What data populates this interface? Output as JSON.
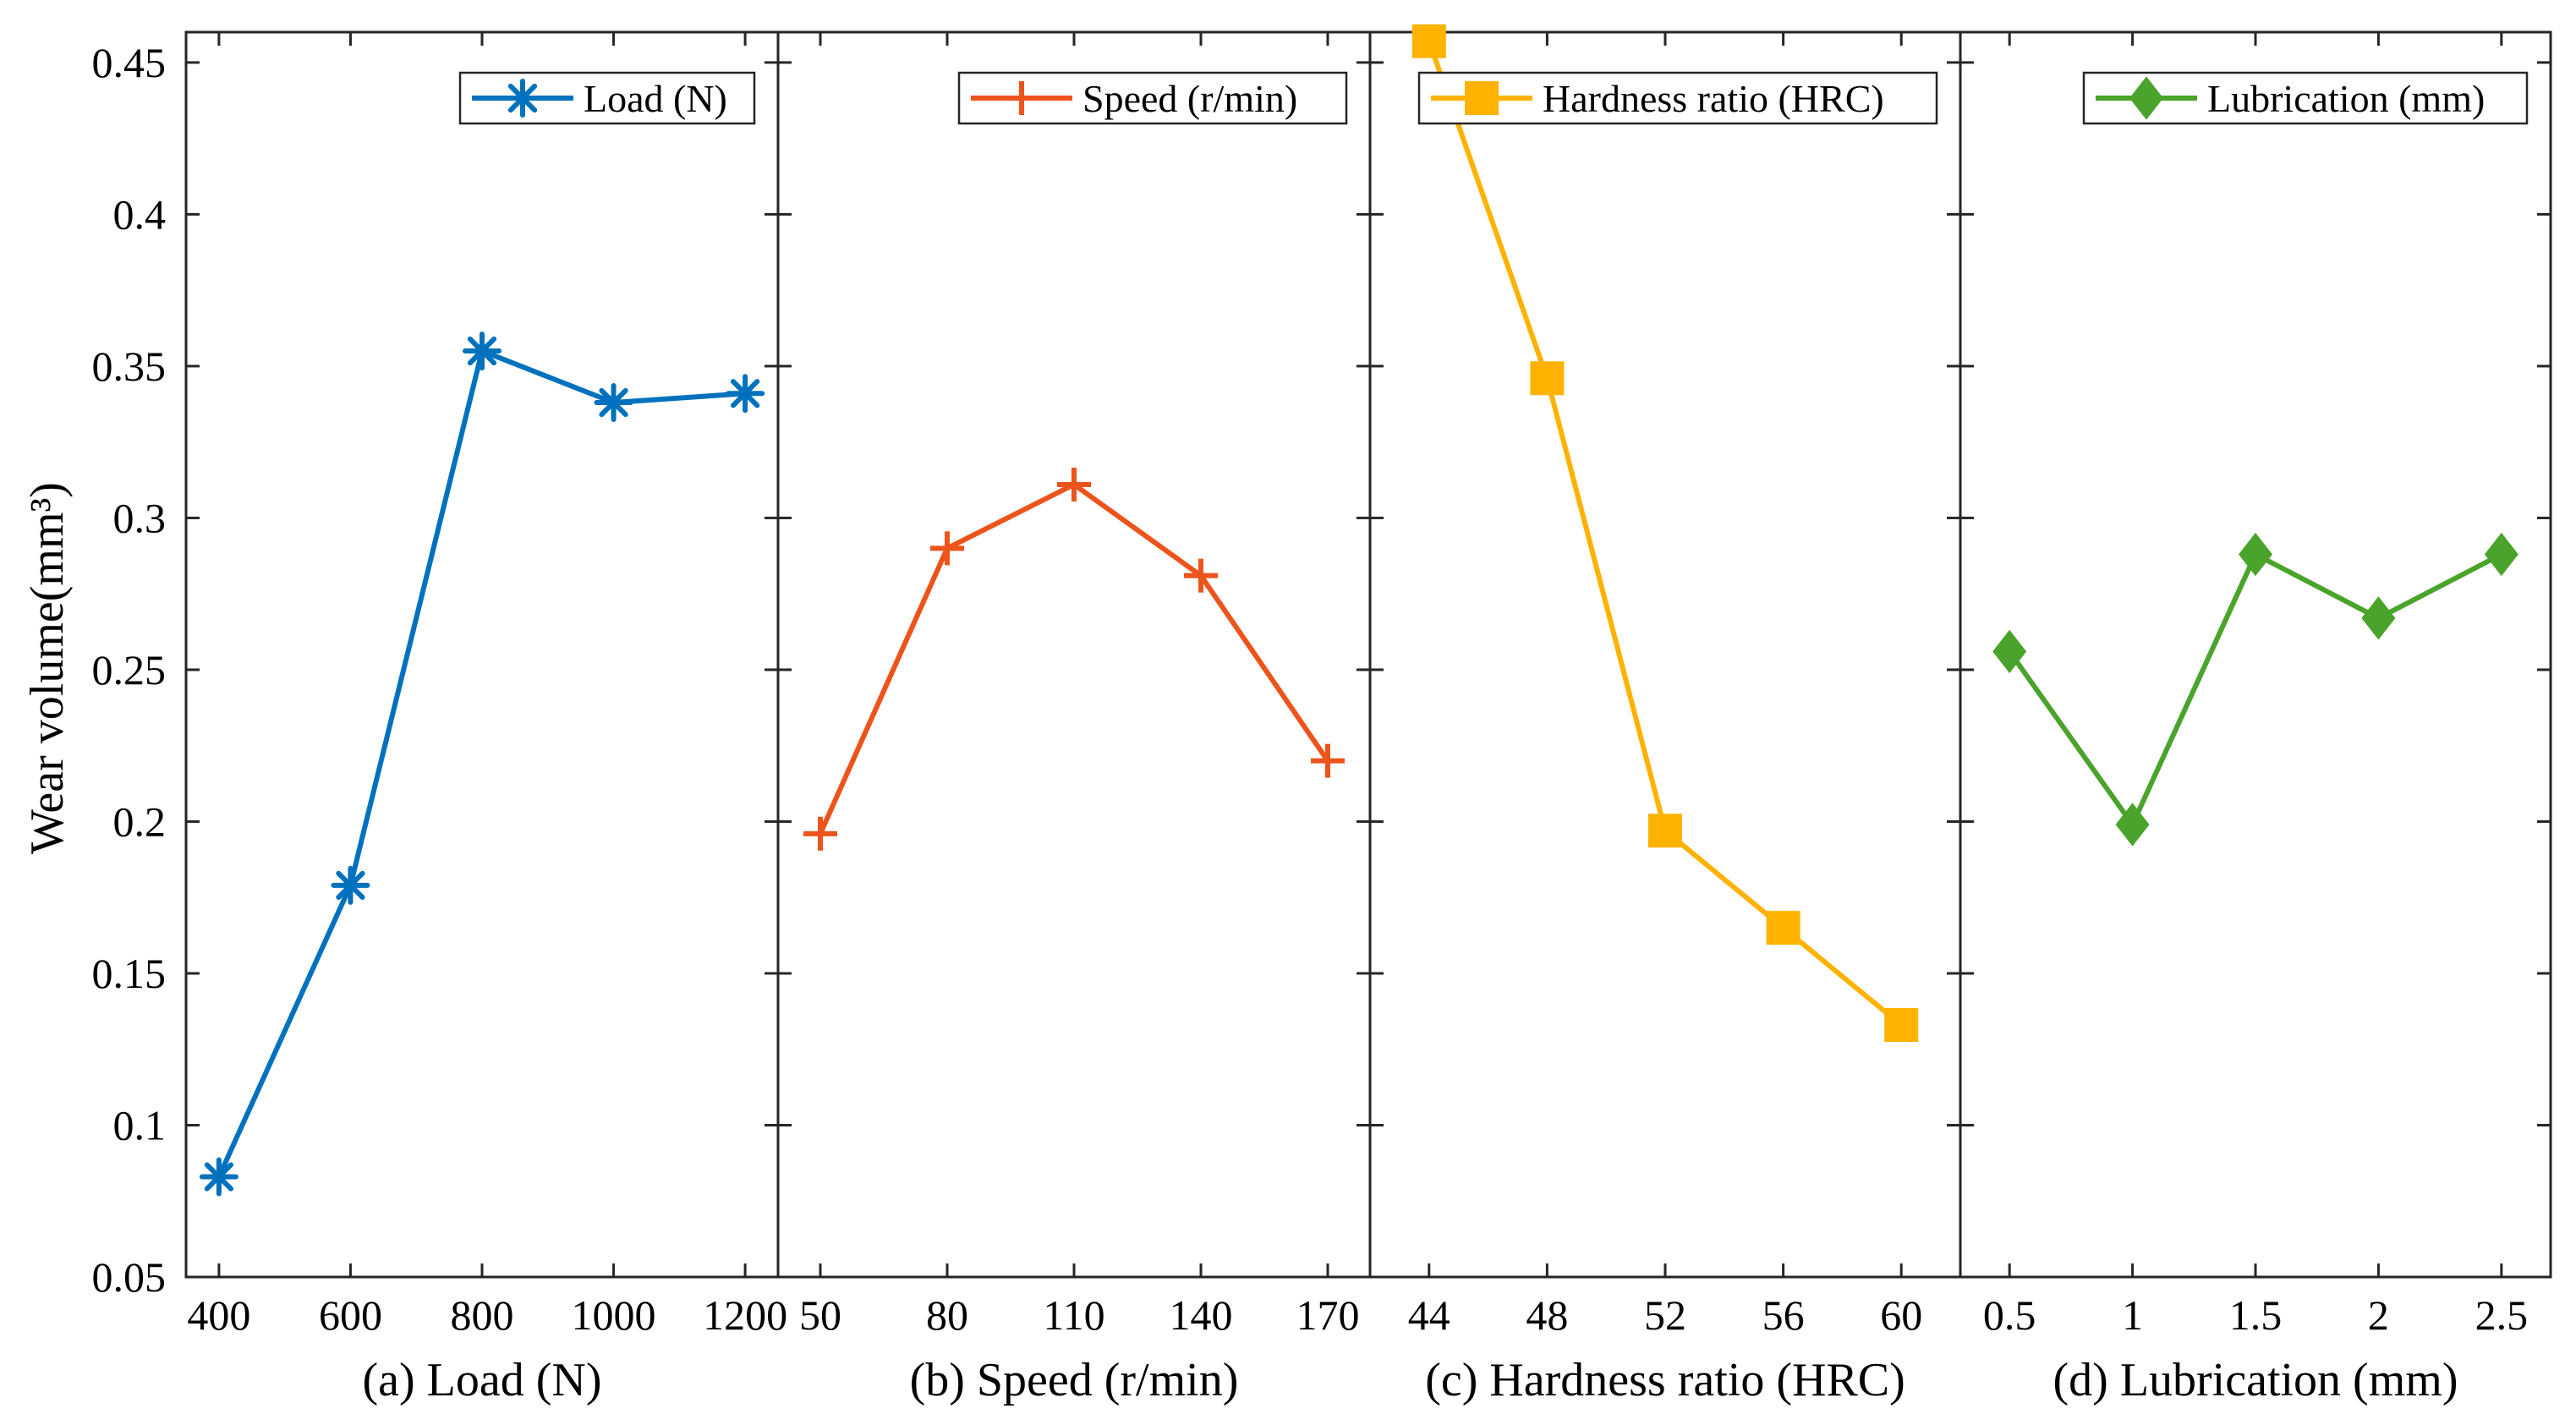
{
  "chart_data": [
    {
      "type": "line",
      "xlabel": "(a) Load (N)",
      "ylabel": "Wear volume(mm³)",
      "categories": [
        "400",
        "600",
        "800",
        "1000",
        "1200"
      ],
      "x": [
        400,
        600,
        800,
        1000,
        1200
      ],
      "xlim": [
        350,
        1250
      ],
      "ylim": [
        0.05,
        0.46
      ],
      "yticks": [
        "0.05",
        "0.1",
        "0.15",
        "0.2",
        "0.25",
        "0.3",
        "0.35",
        "0.4",
        "0.45"
      ],
      "legend_position": "top-right",
      "series": [
        {
          "name": "Load (N)",
          "values": [
            0.083,
            0.179,
            0.355,
            0.338,
            0.341
          ],
          "color": "#0072BD",
          "marker": "asterisk"
        }
      ]
    },
    {
      "type": "line",
      "xlabel": "(b) Speed (r/min)",
      "categories": [
        "50",
        "80",
        "110",
        "140",
        "170"
      ],
      "x": [
        50,
        80,
        110,
        140,
        170
      ],
      "xlim": [
        40,
        180
      ],
      "ylim": [
        0.05,
        0.46
      ],
      "legend_position": "top-right",
      "series": [
        {
          "name": "Speed (r/min)",
          "values": [
            0.196,
            0.29,
            0.311,
            0.281,
            0.22
          ],
          "color": "#ED541B",
          "marker": "plus"
        }
      ]
    },
    {
      "type": "line",
      "xlabel": "(c) Hardness ratio (HRC)",
      "categories": [
        "44",
        "48",
        "52",
        "56",
        "60"
      ],
      "x": [
        44,
        48,
        52,
        56,
        60
      ],
      "xlim": [
        42,
        62
      ],
      "ylim": [
        0.05,
        0.46
      ],
      "legend_position": "top-right",
      "series": [
        {
          "name": "Hardness ratio (HRC)",
          "values": [
            0.457,
            0.346,
            0.197,
            0.165,
            0.133
          ],
          "color": "#FFB300",
          "marker": "square"
        }
      ]
    },
    {
      "type": "line",
      "xlabel": "(d) Lubrication (mm)",
      "categories": [
        "0.5",
        "1",
        "1.5",
        "2",
        "2.5"
      ],
      "x": [
        0.5,
        1,
        1.5,
        2,
        2.5
      ],
      "xlim": [
        0.3,
        2.7
      ],
      "ylim": [
        0.05,
        0.46
      ],
      "legend_position": "top-right",
      "series": [
        {
          "name": "Lubrication (mm)",
          "values": [
            0.256,
            0.199,
            0.288,
            0.267,
            0.288
          ],
          "color": "#4AA32B",
          "marker": "diamond"
        }
      ]
    }
  ]
}
